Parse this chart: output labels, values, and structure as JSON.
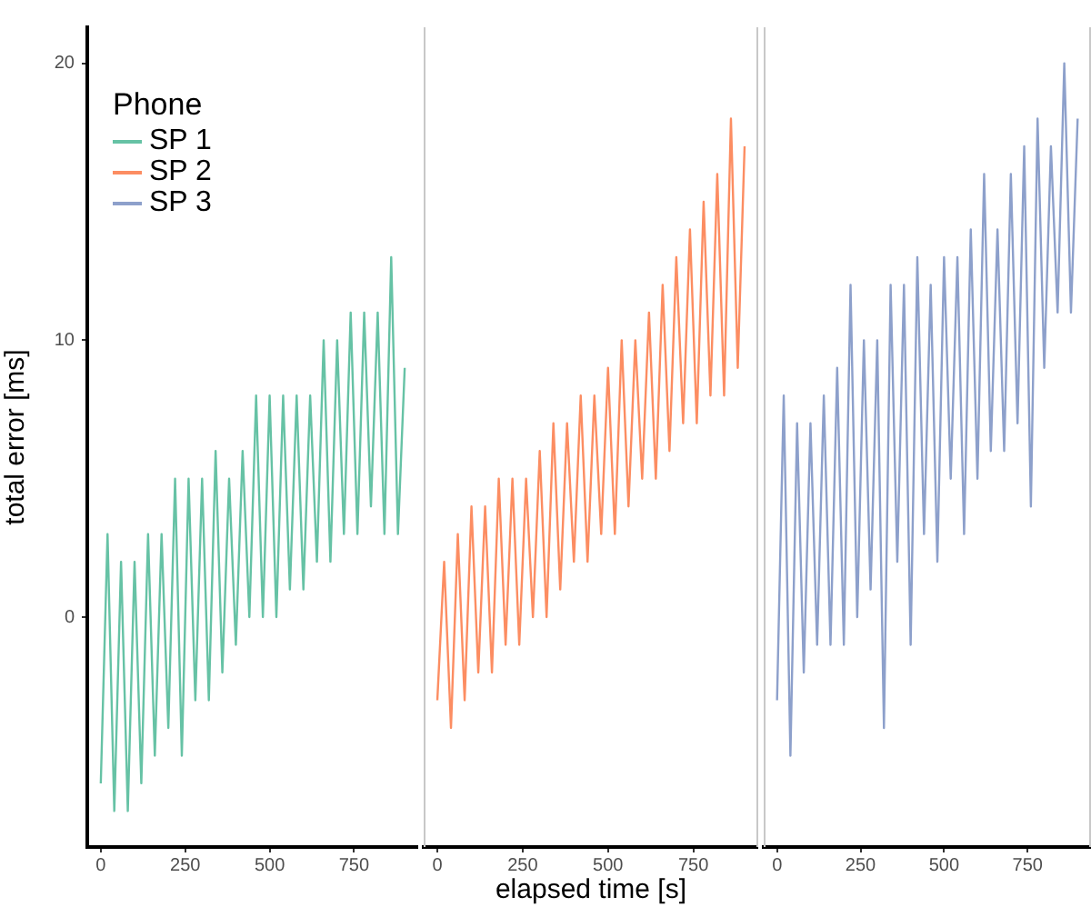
{
  "chart_data": [
    {
      "type": "line",
      "ylabel": "total error [ms]",
      "legend_title": "Phone",
      "legend": "top left",
      "xlim": [
        -40,
        940
      ],
      "xticks": [
        0,
        250,
        500,
        750
      ],
      "ylim": [
        -8.3,
        21.3
      ],
      "yticks": [
        0,
        10,
        20
      ],
      "x": [
        0,
        20,
        40,
        60,
        80,
        100,
        120,
        140,
        160,
        180,
        200,
        220,
        240,
        260,
        280,
        300,
        320,
        340,
        360,
        380,
        400,
        420,
        440,
        460,
        480,
        500,
        520,
        540,
        560,
        580,
        600,
        620,
        640,
        660,
        680,
        700,
        720,
        740,
        760,
        780,
        800,
        820,
        840,
        860,
        880,
        900
      ],
      "series": [
        {
          "name": "SP 1",
          "color": "#66c2a5",
          "values": [
            -6,
            3,
            -7,
            2,
            -7,
            2,
            -6,
            3,
            -5,
            3,
            -4,
            5,
            -5,
            5,
            -3,
            5,
            -3,
            6,
            -2,
            5,
            -1,
            6,
            0,
            8,
            0,
            8,
            0,
            8,
            1,
            8,
            1,
            8,
            2,
            10,
            2,
            10,
            3,
            11,
            3,
            11,
            4,
            11,
            3,
            13,
            3,
            9
          ]
        }
      ]
    },
    {
      "type": "line",
      "xlabel": "elapsed time [s]",
      "tick_labels": "x",
      "xlim": [
        -40,
        940
      ],
      "xticks": [
        0,
        250,
        500,
        750
      ],
      "ylim": [
        -8.3,
        21.3
      ],
      "x": [
        0,
        20,
        40,
        60,
        80,
        100,
        120,
        140,
        160,
        180,
        200,
        220,
        240,
        260,
        280,
        300,
        320,
        340,
        360,
        380,
        400,
        420,
        440,
        460,
        480,
        500,
        520,
        540,
        560,
        580,
        600,
        620,
        640,
        660,
        680,
        700,
        720,
        740,
        760,
        780,
        800,
        820,
        840,
        860,
        880,
        900
      ],
      "series": [
        {
          "name": "SP 2",
          "color": "#fc8d62",
          "values": [
            -3,
            2,
            -4,
            3,
            -3,
            4,
            -2,
            4,
            -2,
            5,
            -1,
            5,
            -1,
            5,
            0,
            6,
            0,
            7,
            1,
            7,
            2,
            8,
            2,
            8,
            3,
            9,
            3,
            10,
            4,
            10,
            5,
            11,
            5,
            12,
            6,
            13,
            7,
            14,
            7,
            15,
            8,
            16,
            8,
            18,
            9,
            17
          ]
        }
      ]
    },
    {
      "type": "line",
      "tick_labels": "x",
      "xlim": [
        -40,
        940
      ],
      "xticks": [
        0,
        250,
        500,
        750
      ],
      "ylim": [
        -8.3,
        21.3
      ],
      "x": [
        0,
        20,
        40,
        60,
        80,
        100,
        120,
        140,
        160,
        180,
        200,
        220,
        240,
        260,
        280,
        300,
        320,
        340,
        360,
        380,
        400,
        420,
        440,
        460,
        480,
        500,
        520,
        540,
        560,
        580,
        600,
        620,
        640,
        660,
        680,
        700,
        720,
        740,
        760,
        780,
        800,
        820,
        840,
        860,
        880,
        900
      ],
      "series": [
        {
          "name": "SP 3",
          "color": "#8da0cb",
          "values": [
            -3,
            8,
            -5,
            7,
            -2,
            7,
            -1,
            8,
            -1,
            9,
            -1,
            12,
            0,
            10,
            1,
            10,
            -4,
            12,
            2,
            12,
            -1,
            13,
            3,
            12,
            2,
            13,
            5,
            13,
            3,
            14,
            5,
            16,
            6,
            14,
            6,
            16,
            7,
            17,
            4,
            18,
            9,
            17,
            11,
            20,
            11,
            18
          ]
        }
      ]
    }
  ]
}
